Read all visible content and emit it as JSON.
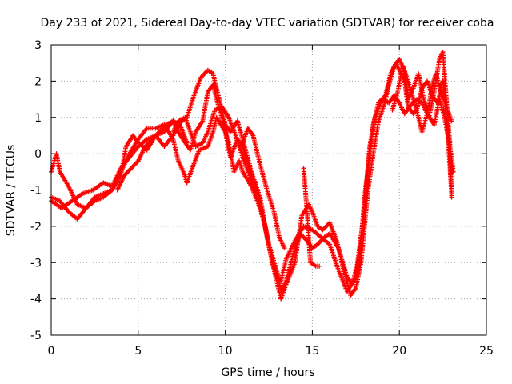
{
  "chart_data": {
    "type": "scatter",
    "title": "Day 233 of 2021, Sidereal Day-to-day VTEC variation (SDTVAR) for receiver coba",
    "xlabel": "GPS time / hours",
    "ylabel": "SDTVAR / TECUs",
    "xlim": [
      0,
      25
    ],
    "ylim": [
      -5,
      3
    ],
    "xticks": [
      0,
      5,
      10,
      15,
      20,
      25
    ],
    "yticks": [
      -5,
      -4,
      -3,
      -2,
      -1,
      0,
      1,
      2,
      3
    ],
    "xtick_labels": [
      "0",
      "5",
      "10",
      "15",
      "20",
      "25"
    ],
    "ytick_labels": [
      "-5",
      "-4",
      "-3",
      "-2",
      "-1",
      "0",
      "1",
      "2",
      "3"
    ],
    "grid": true,
    "marker": "plus",
    "color": "#ff0000",
    "series": [
      {
        "points": [
          [
            0.0,
            -0.5
          ],
          [
            0.3,
            0.0
          ],
          [
            0.5,
            -0.5
          ],
          [
            1.0,
            -0.9
          ],
          [
            1.5,
            -1.4
          ],
          [
            2.0,
            -1.5
          ],
          [
            2.5,
            -1.2
          ],
          [
            3.0,
            -1.1
          ],
          [
            3.5,
            -1.0
          ],
          [
            4.0,
            -0.6
          ],
          [
            4.3,
            0.2
          ],
          [
            4.7,
            0.5
          ],
          [
            5.0,
            0.3
          ],
          [
            5.5,
            0.1
          ],
          [
            6.0,
            0.5
          ],
          [
            6.5,
            0.6
          ],
          [
            7.0,
            0.9
          ],
          [
            7.3,
            0.6
          ],
          [
            7.7,
            0.3
          ],
          [
            8.0,
            0.1
          ],
          [
            8.3,
            0.6
          ],
          [
            8.7,
            0.9
          ],
          [
            9.0,
            1.7
          ],
          [
            9.3,
            1.9
          ],
          [
            9.5,
            1.5
          ],
          [
            9.8,
            1.0
          ],
          [
            10.2,
            0.3
          ],
          [
            10.5,
            -0.5
          ],
          [
            10.8,
            -0.2
          ],
          [
            11.0,
            -0.5
          ],
          [
            11.5,
            -0.9
          ],
          [
            12.0,
            -1.5
          ],
          [
            12.3,
            -2.0
          ],
          [
            12.7,
            -3.0
          ],
          [
            13.0,
            -3.4
          ],
          [
            13.2,
            -3.5
          ],
          [
            13.5,
            -2.9
          ],
          [
            14.0,
            -2.4
          ],
          [
            14.5,
            -2.0
          ],
          [
            15.0,
            -2.1
          ],
          [
            15.5,
            -2.3
          ],
          [
            16.0,
            -2.5
          ],
          [
            16.5,
            -3.2
          ],
          [
            17.0,
            -3.8
          ],
          [
            17.5,
            -3.4
          ],
          [
            17.8,
            -2.5
          ],
          [
            18.0,
            -1.2
          ],
          [
            18.3,
            0.0
          ],
          [
            18.5,
            0.8
          ],
          [
            18.8,
            1.4
          ],
          [
            19.2,
            1.6
          ],
          [
            19.5,
            2.2
          ],
          [
            19.8,
            2.5
          ],
          [
            20.0,
            2.3
          ],
          [
            20.3,
            2.0
          ],
          [
            20.5,
            1.3
          ],
          [
            20.8,
            1.1
          ],
          [
            21.0,
            1.2
          ],
          [
            21.3,
            1.8
          ],
          [
            21.6,
            2.0
          ],
          [
            21.9,
            1.6
          ],
          [
            22.2,
            1.4
          ],
          [
            22.5,
            2.0
          ],
          [
            22.8,
            0.5
          ],
          [
            23.0,
            -1.1
          ]
        ]
      },
      {
        "points": [
          [
            0.0,
            -1.2
          ],
          [
            0.5,
            -1.3
          ],
          [
            1.0,
            -1.6
          ],
          [
            1.5,
            -1.8
          ],
          [
            2.0,
            -1.5
          ],
          [
            2.5,
            -1.3
          ],
          [
            3.0,
            -1.2
          ],
          [
            3.5,
            -1.0
          ],
          [
            4.0,
            -0.5
          ],
          [
            4.5,
            0.0
          ],
          [
            5.0,
            0.4
          ],
          [
            5.5,
            0.7
          ],
          [
            6.0,
            0.7
          ],
          [
            6.5,
            0.8
          ],
          [
            7.0,
            0.4
          ],
          [
            7.3,
            -0.2
          ],
          [
            7.6,
            -0.5
          ],
          [
            7.8,
            -0.8
          ],
          [
            8.1,
            -0.4
          ],
          [
            8.5,
            0.1
          ],
          [
            9.0,
            0.2
          ],
          [
            9.3,
            0.6
          ],
          [
            9.5,
            1.0
          ],
          [
            10.0,
            0.6
          ],
          [
            10.3,
            -0.1
          ],
          [
            10.7,
            0.4
          ],
          [
            11.0,
            0.2
          ],
          [
            11.3,
            -0.3
          ],
          [
            11.7,
            -0.8
          ],
          [
            12.0,
            -1.4
          ],
          [
            12.5,
            -2.5
          ],
          [
            13.0,
            -3.3
          ],
          [
            13.2,
            -3.8
          ],
          [
            13.5,
            -3.5
          ],
          [
            14.0,
            -2.6
          ],
          [
            14.3,
            -2.2
          ],
          [
            14.7,
            -2.4
          ],
          [
            15.0,
            -2.6
          ],
          [
            15.3,
            -2.5
          ],
          [
            15.7,
            -2.3
          ],
          [
            16.0,
            -2.2
          ],
          [
            16.5,
            -2.6
          ],
          [
            17.0,
            -3.4
          ],
          [
            17.3,
            -3.6
          ],
          [
            17.6,
            -3.0
          ],
          [
            18.0,
            -1.5
          ],
          [
            18.3,
            0.2
          ],
          [
            18.6,
            1.0
          ],
          [
            19.0,
            1.5
          ],
          [
            19.4,
            1.4
          ],
          [
            19.7,
            1.6
          ],
          [
            20.0,
            1.4
          ],
          [
            20.3,
            1.1
          ],
          [
            20.6,
            1.3
          ],
          [
            21.0,
            1.5
          ],
          [
            21.3,
            1.4
          ],
          [
            21.6,
            1.1
          ],
          [
            22.0,
            0.8
          ],
          [
            22.3,
            1.5
          ],
          [
            22.6,
            1.0
          ],
          [
            22.9,
            0.2
          ],
          [
            23.1,
            -0.5
          ]
        ]
      },
      {
        "points": [
          [
            0.0,
            -1.3
          ],
          [
            0.6,
            -1.5
          ],
          [
            1.2,
            -1.3
          ],
          [
            1.8,
            -1.1
          ],
          [
            2.4,
            -1.0
          ],
          [
            3.0,
            -0.8
          ],
          [
            3.5,
            -0.9
          ],
          [
            4.0,
            -0.4
          ],
          [
            4.5,
            -0.1
          ],
          [
            5.0,
            0.2
          ],
          [
            5.5,
            0.4
          ],
          [
            6.0,
            0.5
          ],
          [
            6.5,
            0.2
          ],
          [
            7.0,
            0.5
          ],
          [
            7.5,
            0.9
          ],
          [
            7.8,
            1.0
          ],
          [
            8.2,
            1.6
          ],
          [
            8.6,
            2.1
          ],
          [
            9.0,
            2.3
          ],
          [
            9.3,
            2.2
          ],
          [
            9.6,
            1.6
          ],
          [
            10.0,
            0.8
          ],
          [
            10.3,
            0.6
          ],
          [
            10.7,
            0.9
          ],
          [
            11.0,
            0.4
          ],
          [
            11.5,
            -0.5
          ],
          [
            12.0,
            -1.2
          ],
          [
            12.4,
            -2.3
          ],
          [
            12.8,
            -3.2
          ],
          [
            13.2,
            -4.0
          ],
          [
            13.5,
            -3.6
          ],
          [
            14.0,
            -3.0
          ],
          [
            14.4,
            -1.7
          ],
          [
            14.8,
            -1.4
          ],
          [
            15.0,
            -1.6
          ],
          [
            15.3,
            -2.0
          ],
          [
            15.6,
            -2.1
          ],
          [
            16.0,
            -1.9
          ],
          [
            16.4,
            -2.4
          ],
          [
            16.8,
            -3.2
          ],
          [
            17.2,
            -3.9
          ],
          [
            17.5,
            -3.7
          ],
          [
            17.8,
            -3.0
          ],
          [
            18.0,
            -2.0
          ],
          [
            18.2,
            -1.0
          ],
          [
            18.5,
            0.0
          ],
          [
            18.8,
            0.9
          ],
          [
            19.1,
            1.3
          ],
          [
            19.4,
            1.9
          ],
          [
            19.7,
            2.4
          ],
          [
            20.0,
            2.6
          ],
          [
            20.3,
            2.3
          ],
          [
            20.5,
            1.5
          ],
          [
            20.8,
            1.8
          ],
          [
            21.1,
            2.2
          ],
          [
            21.4,
            1.5
          ],
          [
            21.7,
            1.0
          ],
          [
            22.0,
            1.7
          ],
          [
            22.3,
            2.6
          ],
          [
            22.5,
            2.8
          ],
          [
            22.7,
            1.5
          ],
          [
            22.9,
            0.3
          ],
          [
            23.0,
            -1.2
          ]
        ]
      },
      {
        "points": [
          [
            14.5,
            -0.4
          ],
          [
            14.6,
            -1.0
          ],
          [
            14.7,
            -1.6
          ],
          [
            14.8,
            -2.4
          ],
          [
            14.9,
            -3.0
          ],
          [
            15.2,
            -3.1
          ],
          [
            15.4,
            -3.1
          ]
        ]
      },
      {
        "points": [
          [
            11.0,
            0.3
          ],
          [
            11.3,
            0.7
          ],
          [
            11.6,
            0.5
          ],
          [
            12.0,
            -0.3
          ],
          [
            12.4,
            -1.0
          ],
          [
            12.8,
            -1.6
          ],
          [
            13.1,
            -2.3
          ],
          [
            13.4,
            -2.6
          ]
        ]
      },
      {
        "points": [
          [
            7.0,
            0.6
          ],
          [
            7.3,
            0.9
          ],
          [
            7.7,
            1.0
          ],
          [
            8.0,
            0.6
          ],
          [
            8.3,
            0.2
          ],
          [
            8.7,
            0.3
          ],
          [
            9.0,
            0.6
          ],
          [
            9.4,
            1.2
          ],
          [
            9.8,
            1.3
          ],
          [
            10.2,
            1.0
          ],
          [
            10.6,
            0.5
          ],
          [
            11.0,
            -0.1
          ],
          [
            11.4,
            -0.6
          ],
          [
            11.8,
            -1.1
          ],
          [
            12.1,
            -1.6
          ]
        ]
      },
      {
        "points": [
          [
            3.8,
            -1.0
          ],
          [
            4.2,
            -0.6
          ],
          [
            4.6,
            -0.4
          ],
          [
            5.0,
            -0.2
          ],
          [
            5.4,
            0.2
          ],
          [
            5.8,
            0.4
          ],
          [
            6.2,
            0.6
          ],
          [
            6.6,
            0.8
          ],
          [
            7.0,
            0.9
          ],
          [
            7.4,
            0.8
          ],
          [
            7.8,
            0.3
          ]
        ]
      },
      {
        "points": [
          [
            19.6,
            1.2
          ],
          [
            19.9,
            1.7
          ],
          [
            20.2,
            2.4
          ],
          [
            20.5,
            2.0
          ],
          [
            20.8,
            1.5
          ],
          [
            21.1,
            1.0
          ],
          [
            21.3,
            0.6
          ],
          [
            21.6,
            1.1
          ],
          [
            21.9,
            1.9
          ],
          [
            22.1,
            2.2
          ],
          [
            22.4,
            1.7
          ],
          [
            22.7,
            1.3
          ],
          [
            23.0,
            0.9
          ]
        ]
      }
    ]
  }
}
